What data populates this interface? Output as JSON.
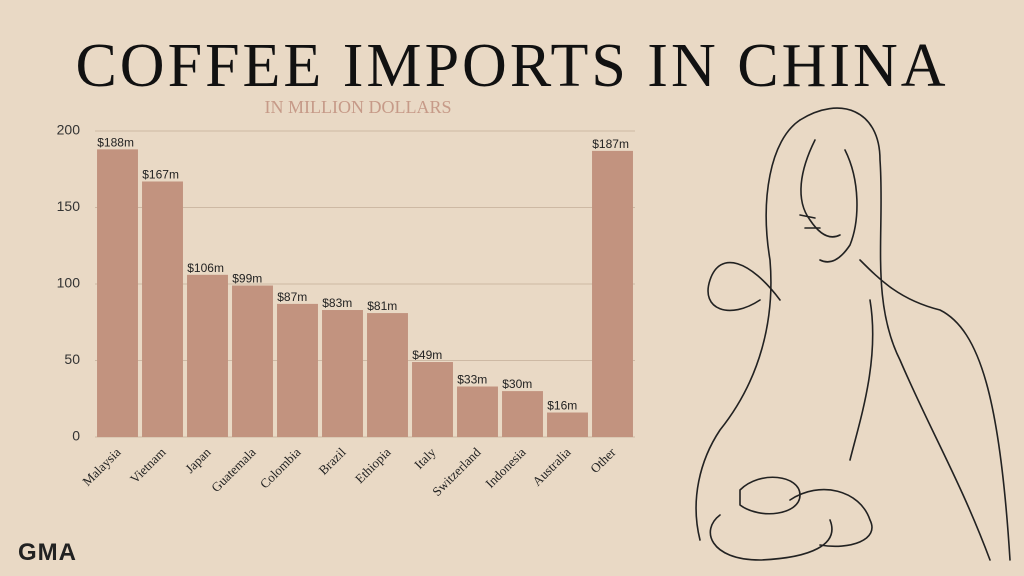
{
  "chart_data": {
    "type": "bar",
    "title": "COFFEE IMPORTS IN CHINA",
    "subtitle": "IN MILLION DOLLARS",
    "categories": [
      "Malaysia",
      "Vietnam",
      "Japan",
      "Guatemala",
      "Colombia",
      "Brazil",
      "Ethiopia",
      "Italy",
      "Switzerland",
      "Indonesia",
      "Australia",
      "Other"
    ],
    "values": [
      188,
      167,
      106,
      99,
      87,
      83,
      81,
      49,
      33,
      30,
      16,
      187
    ],
    "value_labels": [
      "$188m",
      "$167m",
      "$106m",
      "$99m",
      "$87m",
      "$83m",
      "$81m",
      "$49m",
      "$33m",
      "$30m",
      "$16m",
      "$187m"
    ],
    "color": "#c2937f",
    "ylim": [
      0,
      200
    ],
    "yticks": [
      0,
      50,
      100,
      150,
      200
    ],
    "grid": true
  },
  "logo": "GMA"
}
